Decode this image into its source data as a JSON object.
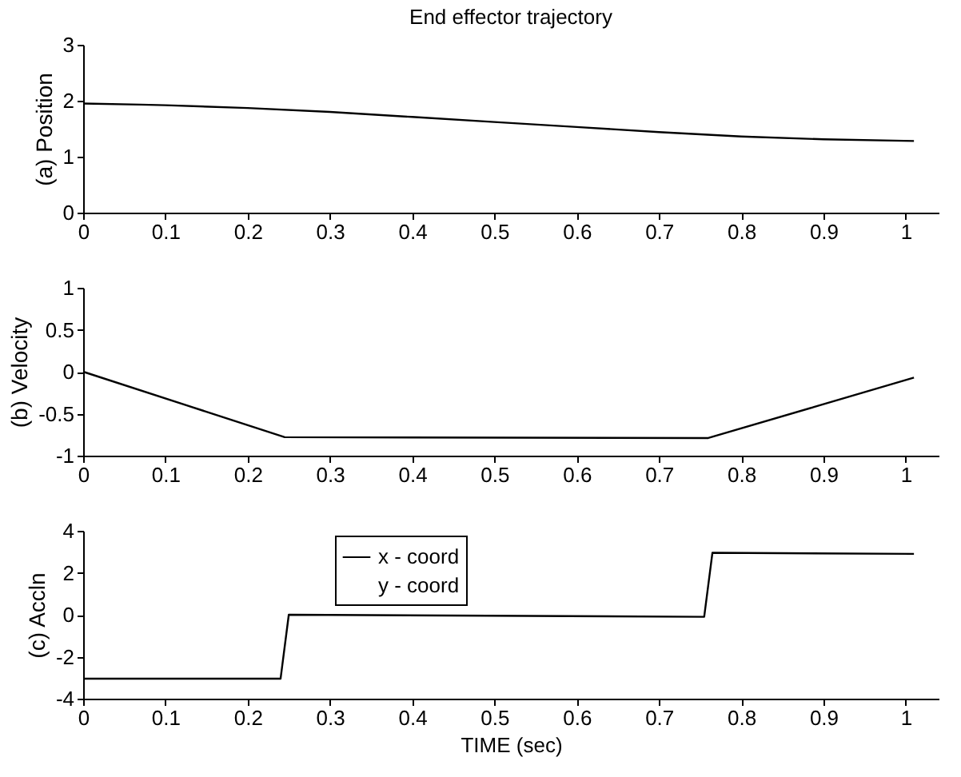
{
  "chart_data": [
    {
      "type": "line",
      "title": "End effector trajectory",
      "ylabel": "(a) Position",
      "xlim": [
        0,
        1.04
      ],
      "xticks": [
        0,
        0.1,
        0.2,
        0.3,
        0.4,
        0.5,
        0.6,
        0.7,
        0.8,
        0.9,
        1
      ],
      "ylim": [
        0,
        3
      ],
      "yticks": [
        0,
        1,
        2,
        3
      ],
      "grid": false,
      "legend": false,
      "line_style": "solid",
      "series": [
        {
          "color": "#000000",
          "x": [
            0,
            0.07,
            0.1,
            0.2,
            0.3,
            0.4,
            0.5,
            0.6,
            0.7,
            0.8,
            0.9,
            1.01
          ],
          "values": [
            1.95,
            1.93,
            1.92,
            1.87,
            1.8,
            1.71,
            1.62,
            1.53,
            1.44,
            1.36,
            1.31,
            1.28
          ]
        }
      ]
    },
    {
      "type": "line",
      "ylabel": "(b) Velocity",
      "xlim": [
        0,
        1.04
      ],
      "xticks": [
        0,
        0.1,
        0.2,
        0.3,
        0.4,
        0.5,
        0.6,
        0.7,
        0.8,
        0.9,
        1
      ],
      "ylim": [
        -1,
        1
      ],
      "yticks": [
        -1,
        -0.5,
        0,
        0.5,
        1
      ],
      "grid": false,
      "legend": false,
      "line_style": "solid",
      "series": [
        {
          "color": "#000000",
          "x": [
            0,
            0.245,
            0.76,
            1.01
          ],
          "values": [
            0,
            -0.78,
            -0.79,
            -0.07
          ]
        }
      ]
    },
    {
      "type": "line",
      "ylabel": "(c) Accln",
      "xlabel": "TIME (sec)",
      "xlim": [
        0,
        1.04
      ],
      "xticks": [
        0,
        0.1,
        0.2,
        0.3,
        0.4,
        0.5,
        0.6,
        0.7,
        0.8,
        0.9,
        1
      ],
      "ylim": [
        -4,
        4
      ],
      "yticks": [
        -4,
        -2,
        0,
        2,
        4
      ],
      "grid": false,
      "legend": "top",
      "line_style": "solid",
      "series": [
        {
          "name": "x - coord",
          "color": "#000000",
          "x": [
            0,
            0.24,
            0.25,
            0.755,
            0.765,
            1.01
          ],
          "values": [
            -3.05,
            -3.05,
            0,
            -0.1,
            2.95,
            2.9
          ]
        },
        {
          "name": "y - coord"
        }
      ]
    }
  ]
}
